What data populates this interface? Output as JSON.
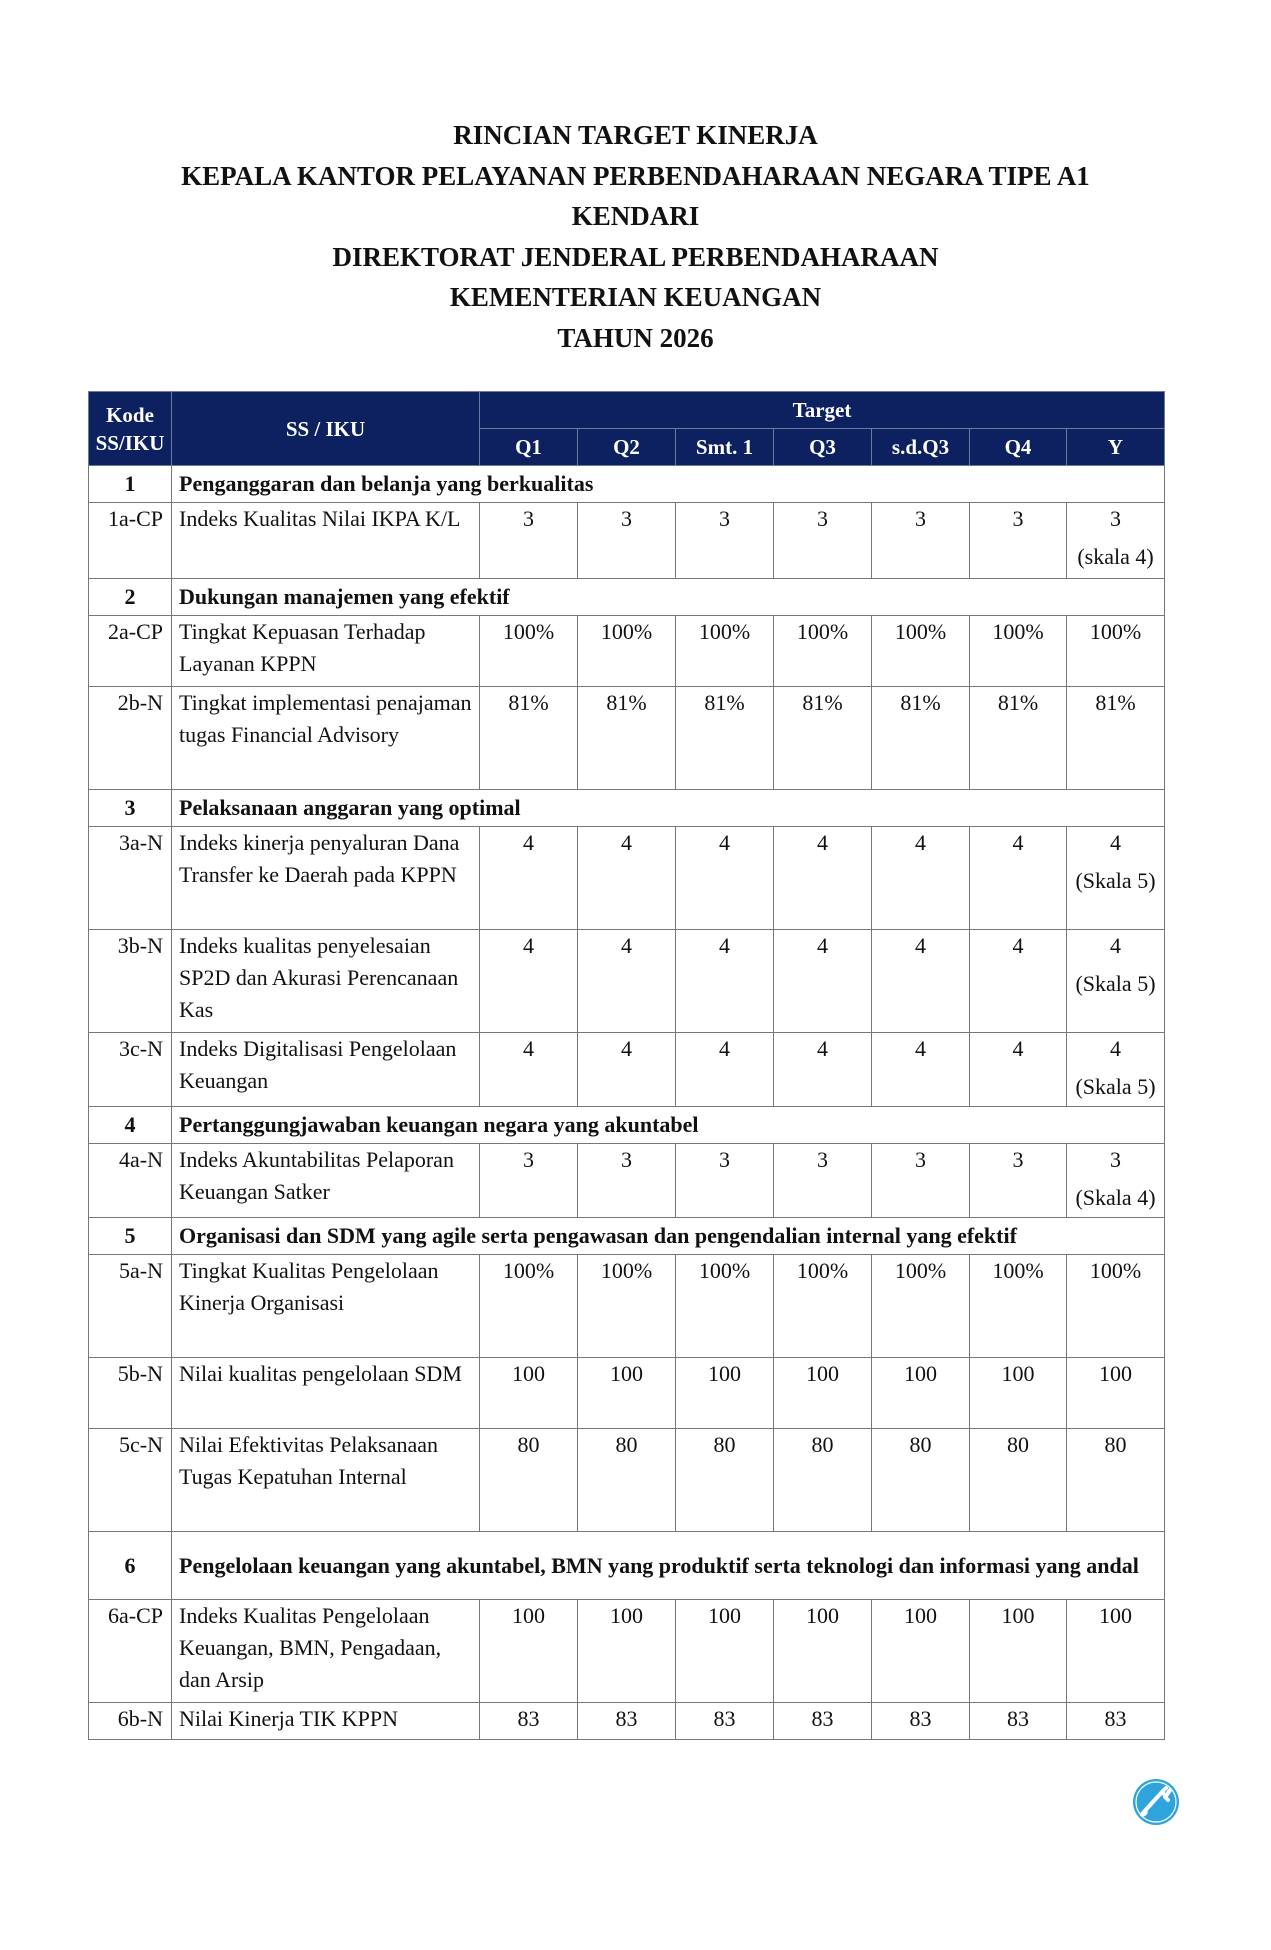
{
  "title_lines": [
    "RINCIAN TARGET KINERJA",
    "KEPALA KANTOR PELAYANAN PERBENDAHARAAN NEGARA TIPE A1",
    "KENDARI",
    "DIREKTORAT JENDERAL PERBENDAHARAAN",
    "KEMENTERIAN KEUANGAN",
    "TAHUN 2026"
  ],
  "header": {
    "kode": "Kode SS/IKU",
    "ss_iku": "SS / IKU",
    "target": "Target",
    "periods": [
      "Q1",
      "Q2",
      "Smt. 1",
      "Q3",
      "s.d.Q3",
      "Q4",
      "Y"
    ]
  },
  "rows": [
    {
      "type": "section",
      "kode": "1",
      "label": "Penganggaran dan belanja yang berkualitas"
    },
    {
      "type": "iku",
      "kode": "1a-CP",
      "label": "Indeks Kualitas Nilai IKPA K/L",
      "values": [
        "3",
        "3",
        "3",
        "3",
        "3",
        "3",
        "3"
      ],
      "y_note": "(skala 4)"
    },
    {
      "type": "section",
      "kode": "2",
      "label": "Dukungan manajemen yang efektif"
    },
    {
      "type": "iku",
      "kode": "2a-CP",
      "label": "Tingkat Kepuasan Terhadap Layanan KPPN",
      "values": [
        "100%",
        "100%",
        "100%",
        "100%",
        "100%",
        "100%",
        "100%"
      ]
    },
    {
      "type": "iku",
      "kode": "2b-N",
      "label": "Tingkat implementasi penajaman tugas Financial Advisory",
      "values": [
        "81%",
        "81%",
        "81%",
        "81%",
        "81%",
        "81%",
        "81%"
      ]
    },
    {
      "type": "section",
      "kode": "3",
      "label": "Pelaksanaan anggaran yang optimal"
    },
    {
      "type": "iku",
      "kode": "3a-N",
      "label": "Indeks kinerja penyaluran Dana Transfer ke Daerah pada KPPN",
      "values": [
        "4",
        "4",
        "4",
        "4",
        "4",
        "4",
        "4"
      ],
      "y_note": "(Skala 5)"
    },
    {
      "type": "iku",
      "kode": "3b-N",
      "label": "Indeks kualitas penyelesaian SP2D dan Akurasi Perencanaan Kas",
      "values": [
        "4",
        "4",
        "4",
        "4",
        "4",
        "4",
        "4"
      ],
      "y_note": "(Skala 5)"
    },
    {
      "type": "iku",
      "kode": "3c-N",
      "label": "Indeks Digitalisasi Pengelolaan Keuangan",
      "values": [
        "4",
        "4",
        "4",
        "4",
        "4",
        "4",
        "4"
      ],
      "y_note": "(Skala 5)"
    },
    {
      "type": "section",
      "kode": "4",
      "label": "Pertanggungjawaban keuangan negara yang akuntabel"
    },
    {
      "type": "iku",
      "kode": "4a-N",
      "label": "Indeks Akuntabilitas Pelaporan Keuangan Satker",
      "values": [
        "3",
        "3",
        "3",
        "3",
        "3",
        "3",
        "3"
      ],
      "y_note": "(Skala 4)"
    },
    {
      "type": "section",
      "kode": "5",
      "label": "Organisasi dan SDM yang agile serta pengawasan dan pengendalian internal yang efektif"
    },
    {
      "type": "iku",
      "kode": "5a-N",
      "label": "Tingkat Kualitas Pengelolaan Kinerja Organisasi",
      "values": [
        "100%",
        "100%",
        "100%",
        "100%",
        "100%",
        "100%",
        "100%"
      ]
    },
    {
      "type": "iku",
      "kode": "5b-N",
      "label": "Nilai kualitas pengelolaan SDM",
      "values": [
        "100",
        "100",
        "100",
        "100",
        "100",
        "100",
        "100"
      ]
    },
    {
      "type": "iku",
      "kode": "5c-N",
      "label": "Nilai Efektivitas Pelaksanaan Tugas Kepatuhan Internal",
      "values": [
        "80",
        "80",
        "80",
        "80",
        "80",
        "80",
        "80"
      ]
    },
    {
      "type": "section",
      "kode": "6",
      "label": "Pengelolaan keuangan yang akuntabel, BMN yang produktif serta teknologi dan informasi yang andal"
    },
    {
      "type": "iku",
      "kode": "6a-CP",
      "label": "Indeks Kualitas Pengelolaan Keuangan, BMN, Pengadaan, dan Arsip",
      "values": [
        "100",
        "100",
        "100",
        "100",
        "100",
        "100",
        "100"
      ]
    },
    {
      "type": "iku",
      "kode": "6b-N",
      "label": "Nilai Kinerja TIK KPPN",
      "values": [
        "83",
        "83",
        "83",
        "83",
        "83",
        "83",
        "83"
      ]
    }
  ],
  "logo": {
    "icon": "key-logo-icon",
    "color": "#2fa3dc"
  }
}
